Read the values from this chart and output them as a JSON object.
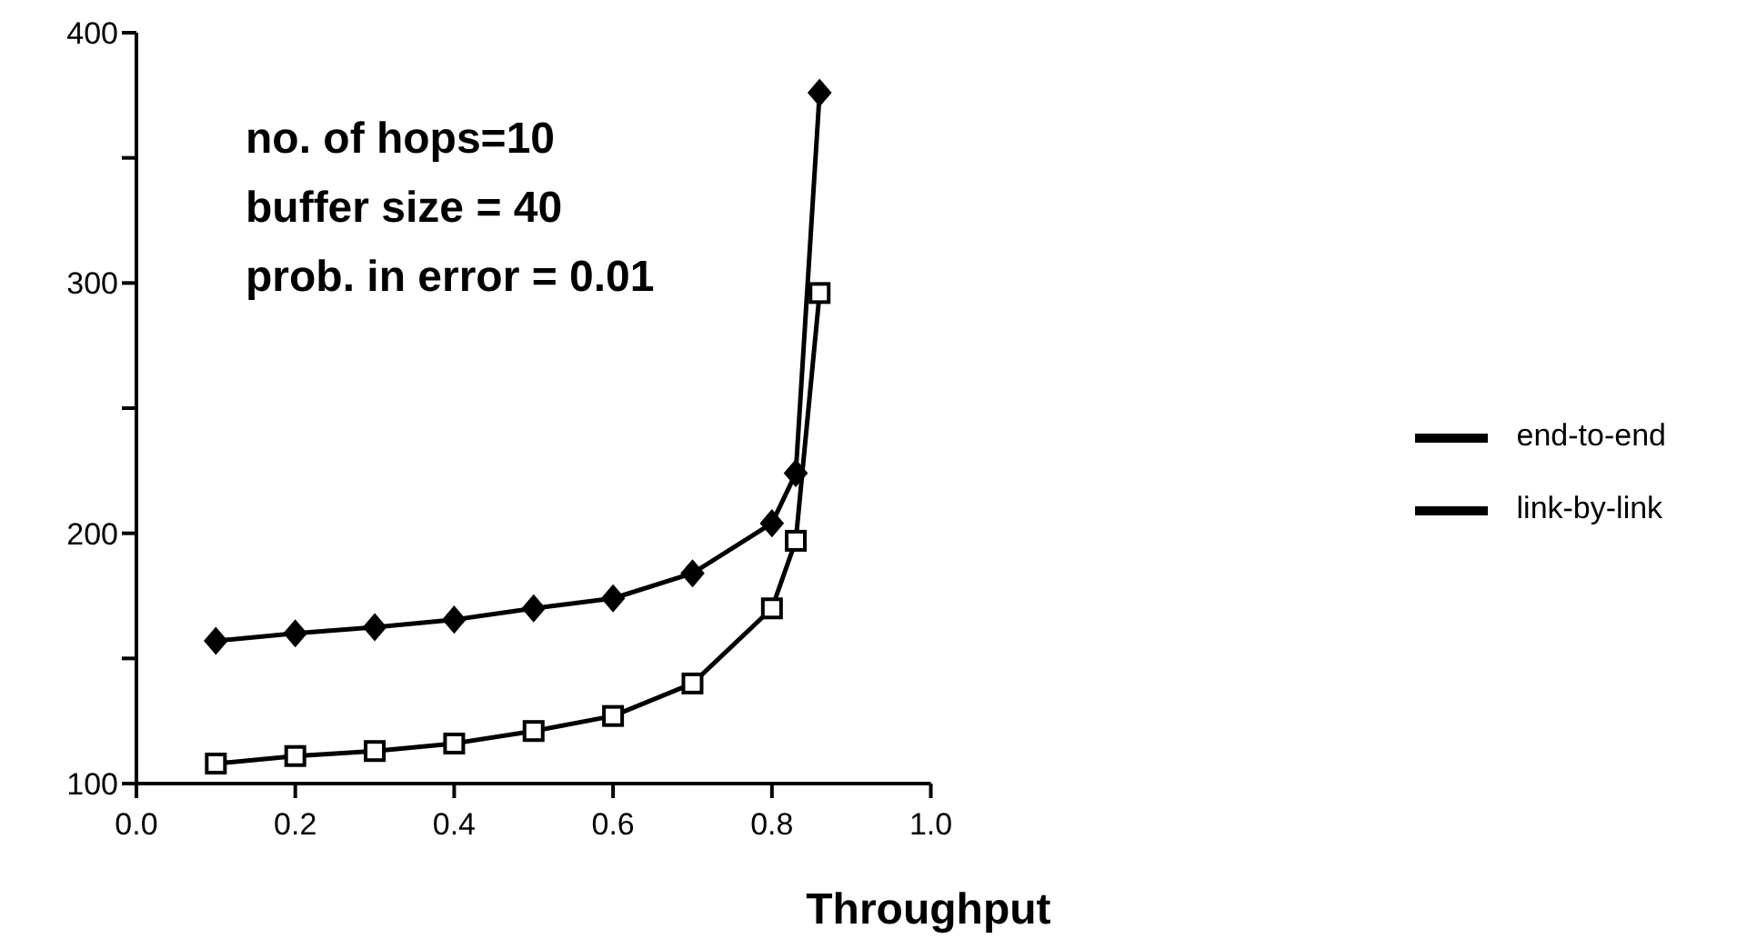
{
  "chart_data": {
    "type": "line",
    "xlabel": "Throughput",
    "x": [
      0.1,
      0.2,
      0.3,
      0.4,
      0.5,
      0.6,
      0.7,
      0.8,
      0.83,
      0.86
    ],
    "series": [
      {
        "name": "end-to-end",
        "color": "#000000",
        "marker": "square",
        "values": [
          108,
          111,
          113,
          116,
          121,
          127,
          140,
          170,
          197,
          296
        ]
      },
      {
        "name": "link-by-link",
        "color": "#000000",
        "marker": "diamond",
        "values": [
          157,
          160,
          162.5,
          165.5,
          170,
          174,
          184,
          204,
          224,
          376
        ]
      }
    ],
    "xlim": [
      0,
      1
    ],
    "xticks": [
      {
        "value": 0,
        "label": "0.0"
      },
      0.2,
      0.4,
      0.6,
      0.8,
      {
        "value": 1,
        "label": "1.0"
      }
    ],
    "ylim": [
      100,
      400
    ],
    "yticks": [
      100,
      {
        "value": 150,
        "label": null
      },
      200,
      {
        "value": 250,
        "label": null
      },
      300,
      {
        "value": 350,
        "label": null
      },
      400
    ],
    "annotations": [
      "no. of hops=10",
      "buffer size = 40",
      "prob. in error = 0.01"
    ],
    "legend": "right",
    "grid": false,
    "line_style": "solid"
  }
}
